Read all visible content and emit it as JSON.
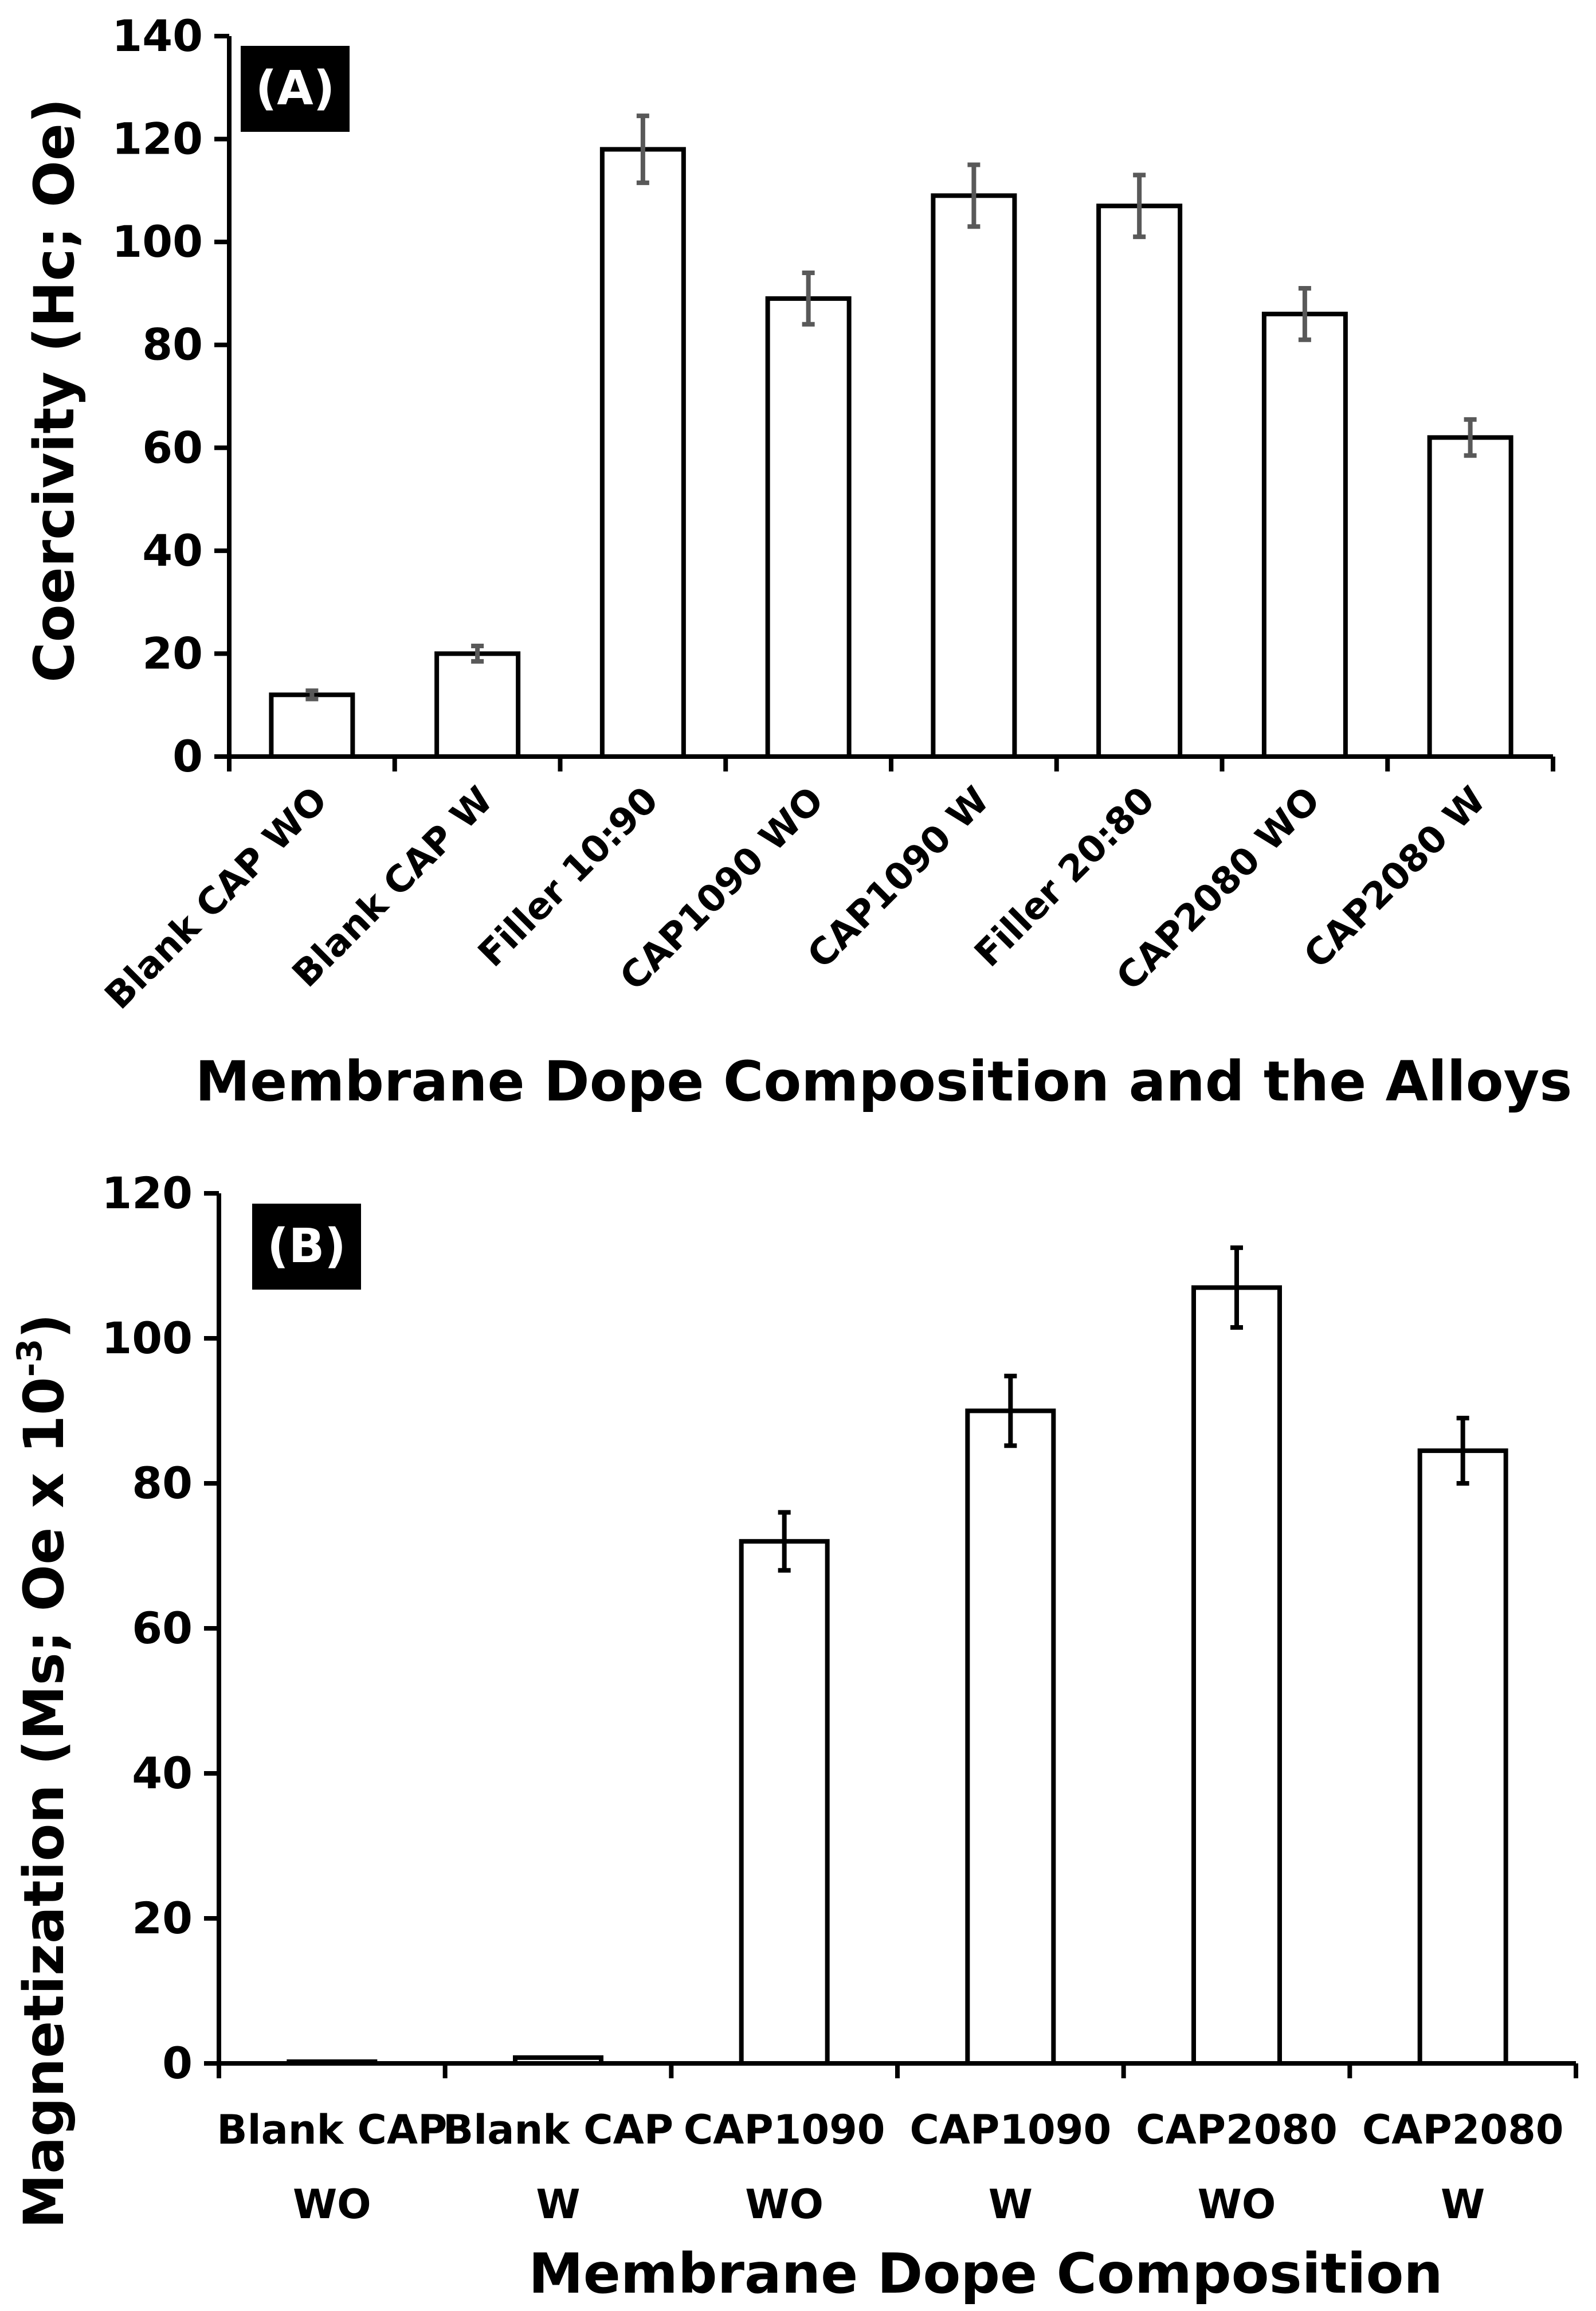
{
  "chart_data": [
    {
      "type": "bar",
      "panel_label": "(A)",
      "categories": [
        "Blank CAP WO",
        "Blank CAP W",
        "Filler 10:90",
        "CAP1090  WO",
        "CAP1090  W",
        "Filler 20:80",
        "CAP2080  WO",
        "CAP2080  W"
      ],
      "values": [
        12,
        20,
        118,
        89,
        109,
        107,
        86,
        62
      ],
      "errors": [
        0.8,
        1.5,
        6.5,
        5,
        6,
        6,
        5,
        3.5
      ],
      "xlabel": "Membrane Dope Composition and the Alloys",
      "ylabel": "Coercivity (Hc; Oe)",
      "ylim": [
        0,
        140
      ],
      "yticks": [
        0,
        20,
        40,
        60,
        80,
        100,
        120,
        140
      ],
      "grid": false,
      "error_bar_color": "#595959",
      "bar_fill": "#ffffff",
      "bar_stroke": "#000000"
    },
    {
      "type": "bar",
      "panel_label": "(B)",
      "categories": [
        [
          "Blank CAP",
          "WO"
        ],
        [
          "Blank CAP",
          "W"
        ],
        [
          "CAP1090",
          "WO"
        ],
        [
          "CAP1090",
          "W"
        ],
        [
          "CAP2080",
          "WO"
        ],
        [
          "CAP2080",
          "W"
        ]
      ],
      "values": [
        0.2,
        0.8,
        72,
        90,
        107,
        84.5
      ],
      "errors": [
        0,
        0,
        4,
        4.8,
        5.5,
        4.5
      ],
      "xlabel": "Membrane Dope Composition",
      "ylabel_main": "Magnetization  (Ms; Oe x 10",
      "ylabel_sup": "-3",
      "ylabel_end": ")",
      "ylim": [
        0,
        120
      ],
      "yticks": [
        0,
        20,
        40,
        60,
        80,
        100,
        120
      ],
      "grid": false,
      "error_bar_color": "#000000",
      "bar_fill": "#ffffff",
      "bar_stroke": "#000000"
    }
  ]
}
